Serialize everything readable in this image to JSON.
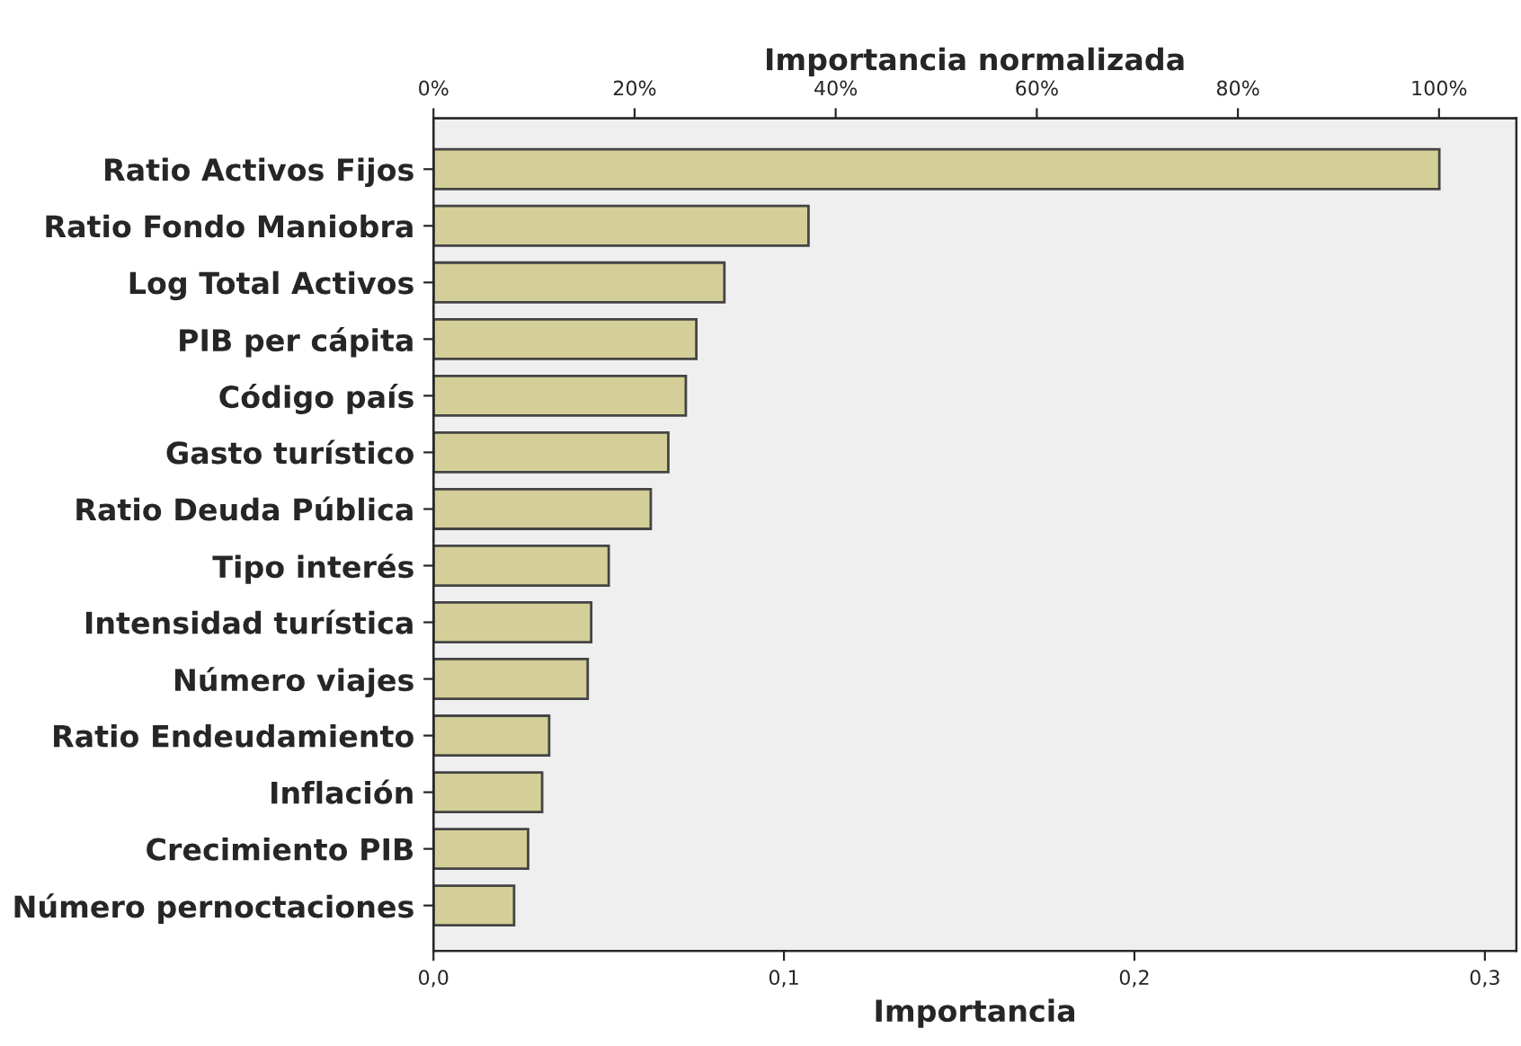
{
  "chart_data": {
    "type": "bar",
    "orientation": "horizontal",
    "categories": [
      "Ratio Activos Fijos",
      "Ratio Fondo Maniobra",
      "Log Total Activos",
      "PIB per cápita",
      "Código país",
      "Gasto turístico",
      "Ratio Deuda Pública",
      "Tipo interés",
      "Intensidad turística",
      "Número viajes",
      "Ratio Endeudamiento",
      "Inflación",
      "Crecimiento PIB",
      "Número pernoctaciones"
    ],
    "values": [
      0.287,
      0.107,
      0.083,
      0.075,
      0.072,
      0.067,
      0.062,
      0.05,
      0.045,
      0.044,
      0.033,
      0.031,
      0.027,
      0.023
    ],
    "color": "#d4cf98",
    "xlabel": "Importancia",
    "xlim": [
      0,
      0.309
    ],
    "xticks": [
      {
        "value": 0,
        "label": "0,0"
      },
      {
        "value": 0.1,
        "label": "0,1"
      },
      {
        "value": 0.2,
        "label": "0,2"
      },
      {
        "value": 0.3,
        "label": "0,3"
      }
    ],
    "x2label": "Importancia normalizada",
    "x2lim": [
      0,
      107.7
    ],
    "x2ticks": [
      {
        "value": 0,
        "label": "0%"
      },
      {
        "value": 20,
        "label": "20%"
      },
      {
        "value": 40,
        "label": "40%"
      },
      {
        "value": 60,
        "label": "60%"
      },
      {
        "value": 80,
        "label": "80%"
      },
      {
        "value": 100,
        "label": "100%"
      }
    ],
    "grid": false,
    "legend": false
  }
}
